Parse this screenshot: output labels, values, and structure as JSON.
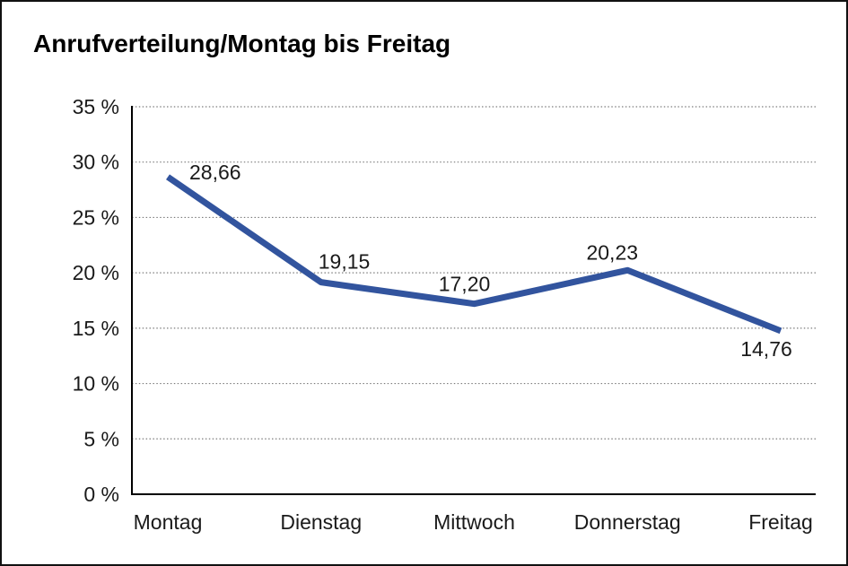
{
  "title": "Anrufverteilung/Montag bis Freitag",
  "colors": {
    "line": "#32549E",
    "grid": "#7d7d7d",
    "axis": "#000000",
    "text": "#1a1a1a",
    "background": "#ffffff",
    "border": "#111111"
  },
  "chart_data": {
    "type": "line",
    "title": "Anrufverteilung/Montag bis Freitag",
    "categories": [
      "Montag",
      "Dienstag",
      "Mittwoch",
      "Donnerstag",
      "Freitag"
    ],
    "values": [
      28.66,
      19.15,
      17.2,
      20.23,
      14.76
    ],
    "value_labels": [
      "28,66",
      "19,15",
      "17,20",
      "20,23",
      "14,76"
    ],
    "xlabel": "",
    "ylabel": "",
    "ylim": [
      0,
      35
    ],
    "y_tick_step": 5,
    "y_tick_labels": [
      "0 %",
      "5 %",
      "10 %",
      "15 %",
      "20 %",
      "25 %",
      "30 %",
      "35 %"
    ],
    "grid": "horizontal-dotted",
    "legend": "none",
    "line_color": "#32549E"
  }
}
